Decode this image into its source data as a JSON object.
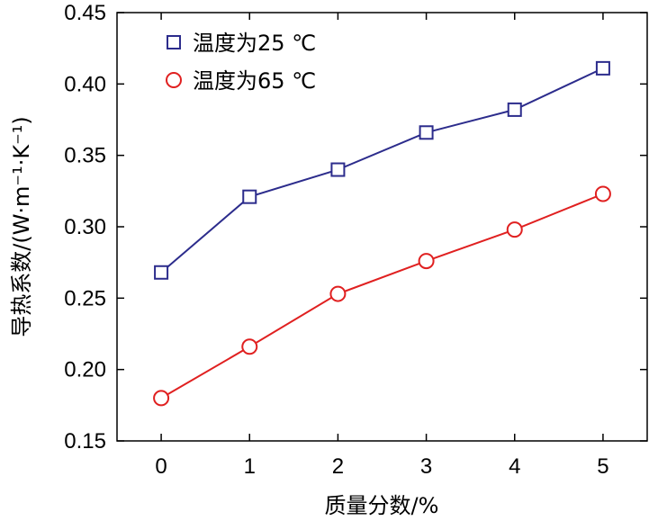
{
  "chart_data": {
    "type": "line",
    "title": "",
    "xlabel": "质量分数/%",
    "ylabel": "导热系数/(W·m⁻¹·K⁻¹)",
    "x": [
      0,
      1,
      2,
      3,
      4,
      5
    ],
    "xlim": [
      -0.5,
      5.5
    ],
    "ylim": [
      0.15,
      0.45
    ],
    "xticks": [
      "0",
      "1",
      "2",
      "3",
      "4",
      "5"
    ],
    "yticks": [
      "0.15",
      "0.20",
      "0.25",
      "0.30",
      "0.35",
      "0.40",
      "0.45"
    ],
    "grid": false,
    "legend_position": "top-left",
    "series": [
      {
        "name": "温度为25 ℃",
        "values": [
          0.268,
          0.321,
          0.34,
          0.366,
          0.382,
          0.411
        ],
        "marker": "square",
        "color": "#2c2c8c"
      },
      {
        "name": "温度为65 ℃",
        "values": [
          0.18,
          0.216,
          0.253,
          0.276,
          0.298,
          0.323
        ],
        "marker": "circle",
        "color": "#e02020"
      }
    ]
  }
}
